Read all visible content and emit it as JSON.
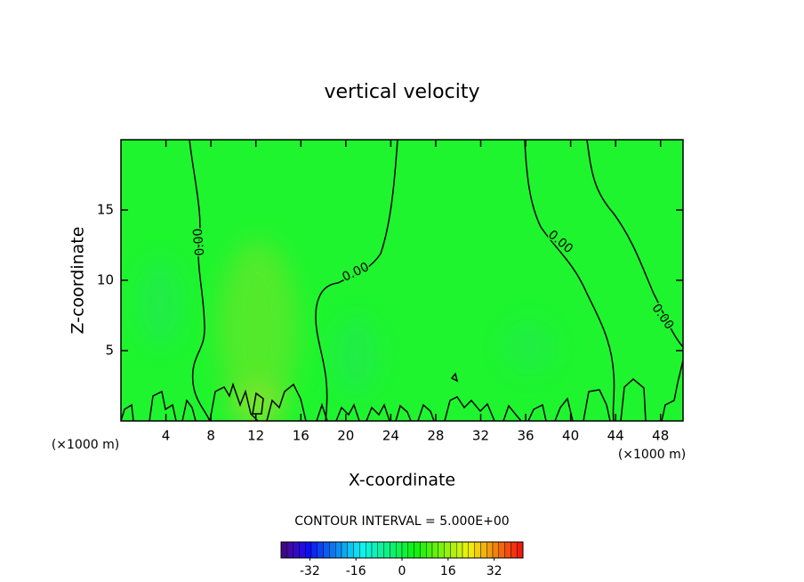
{
  "chart_data": {
    "type": "contour",
    "title": "vertical velocity",
    "xlabel": "X-coordinate",
    "ylabel": "Z-coordinate",
    "x_unit_labels": [
      "(×1000 m)",
      "(×1000 m)"
    ],
    "xlim": [
      0,
      50
    ],
    "ylim": [
      0,
      20
    ],
    "xticks": [
      4,
      8,
      12,
      16,
      20,
      24,
      28,
      32,
      36,
      40,
      44,
      48
    ],
    "yticks": [
      5,
      10,
      15
    ],
    "contour_labels": [
      "0.00",
      "0.00",
      "0.00",
      "0.00"
    ],
    "contour_interval_text": "CONTOUR INTERVAL = 5.000E+00",
    "colorbar_lim": [
      -42,
      42
    ],
    "colorbar_ticks": [
      -32,
      -16,
      0,
      16,
      32
    ],
    "field_color": "#1ef52e"
  }
}
